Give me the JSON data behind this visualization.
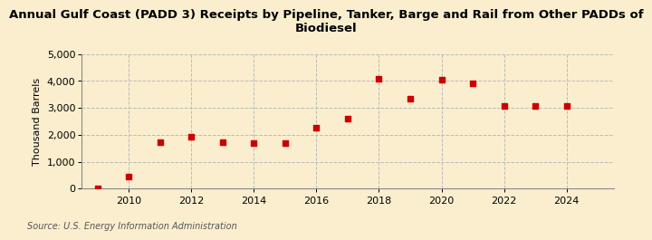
{
  "title_line1": "Annual Gulf Coast (PADD 3) Receipts by Pipeline, Tanker, Barge and Rail from Other PADDs of",
  "title_line2": "Biodiesel",
  "ylabel": "Thousand Barrels",
  "source": "Source: U.S. Energy Information Administration",
  "years": [
    2009,
    2010,
    2011,
    2012,
    2013,
    2014,
    2015,
    2016,
    2017,
    2018,
    2019,
    2020,
    2021,
    2022,
    2023,
    2024
  ],
  "values": [
    5,
    460,
    1720,
    1920,
    1740,
    1680,
    1700,
    2280,
    2600,
    4080,
    3350,
    4050,
    3920,
    3080,
    3060,
    3060
  ],
  "marker_color": "#cc0000",
  "marker_size": 5,
  "bg_color": "#faeece",
  "grid_color": "#bbbbbb",
  "grid_style": "--",
  "xlim": [
    2008.5,
    2025.5
  ],
  "ylim": [
    0,
    5000
  ],
  "yticks": [
    0,
    1000,
    2000,
    3000,
    4000,
    5000
  ],
  "xticks": [
    2010,
    2012,
    2014,
    2016,
    2018,
    2020,
    2022,
    2024
  ],
  "title_fontsize": 9.5,
  "axis_label_fontsize": 8,
  "tick_fontsize": 8,
  "source_fontsize": 7
}
